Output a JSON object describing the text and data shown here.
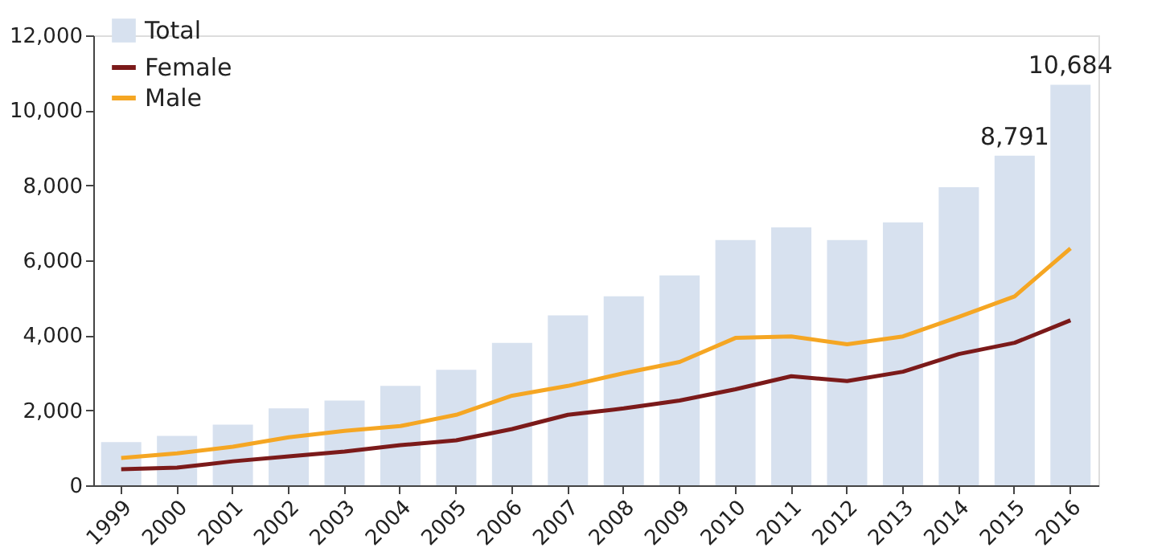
{
  "chart_data": {
    "type": "bar",
    "categories": [
      "1999",
      "2000",
      "2001",
      "2002",
      "2003",
      "2004",
      "2005",
      "2006",
      "2007",
      "2008",
      "2009",
      "2010",
      "2011",
      "2012",
      "2013",
      "2014",
      "2015",
      "2016"
    ],
    "series": [
      {
        "name": "Total",
        "color": "#d7e1ef",
        "values": [
          1150,
          1320,
          1620,
          2050,
          2260,
          2650,
          3080,
          3800,
          4530,
          5040,
          5600,
          6540,
          6880,
          6540,
          7010,
          7950,
          8791,
          10684
        ],
        "value_labels": [
          null,
          null,
          null,
          null,
          null,
          null,
          null,
          null,
          null,
          null,
          null,
          null,
          null,
          null,
          null,
          null,
          "8,791",
          "10,684"
        ]
      },
      {
        "name": "Female",
        "type": "line",
        "color": "#7b1a1a",
        "values": [
          430,
          470,
          640,
          770,
          900,
          1070,
          1200,
          1500,
          1880,
          2050,
          2260,
          2560,
          2910,
          2780,
          3030,
          3500,
          3800,
          4400
        ]
      },
      {
        "name": "Male",
        "type": "line",
        "color": "#f5a623",
        "values": [
          730,
          850,
          1030,
          1280,
          1450,
          1580,
          1880,
          2390,
          2650,
          2990,
          3290,
          3930,
          3970,
          3760,
          3970,
          4490,
          5040,
          6320
        ]
      }
    ],
    "ylim": [
      0,
      12000
    ],
    "yticks": [
      {
        "value": 0,
        "label": "0"
      },
      {
        "value": 2000,
        "label": "2,000"
      },
      {
        "value": 4000,
        "label": "4,000"
      },
      {
        "value": 6000,
        "label": "6,000"
      },
      {
        "value": 8000,
        "label": "8,000"
      },
      {
        "value": 10000,
        "label": "10,000"
      },
      {
        "value": 12000,
        "label": "12,000"
      }
    ],
    "grid": false,
    "legend": "top left"
  }
}
